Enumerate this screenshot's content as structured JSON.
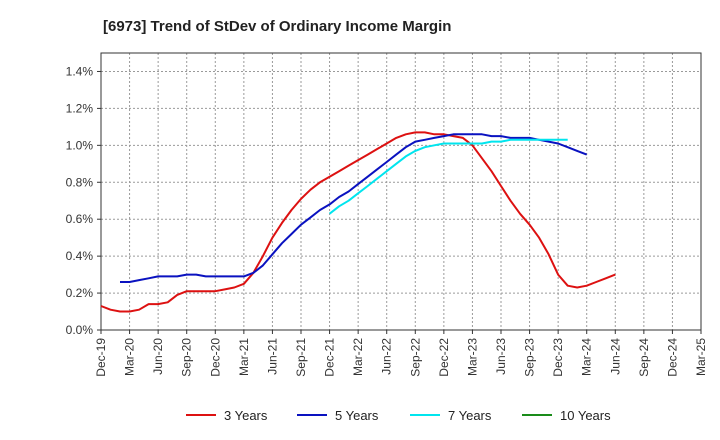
{
  "chart_data": {
    "type": "line",
    "title": "[6973]  Trend of StDev of Ordinary Income Margin",
    "xlabel": "",
    "ylabel": "",
    "ylim": [
      0,
      1.5
    ],
    "y_ticks": [
      "0.0%",
      "0.2%",
      "0.4%",
      "0.6%",
      "0.8%",
      "1.0%",
      "1.2%",
      "1.4%"
    ],
    "y_tick_values": [
      0,
      0.2,
      0.4,
      0.6,
      0.8,
      1.0,
      1.2,
      1.4
    ],
    "x_tick_labels": [
      "Dec-19",
      "Mar-20",
      "Jun-20",
      "Sep-20",
      "Dec-20",
      "Mar-21",
      "Jun-21",
      "Sep-21",
      "Dec-21",
      "Mar-22",
      "Jun-22",
      "Sep-22",
      "Dec-22",
      "Mar-23",
      "Jun-23",
      "Sep-23",
      "Dec-23",
      "Mar-24",
      "Jun-24",
      "Sep-24",
      "Dec-24",
      "Mar-25"
    ],
    "grid": true,
    "legend_position": "bottom",
    "series": [
      {
        "name": "3 Years",
        "color": "#dd1111",
        "start_index": 0,
        "values": [
          0.13,
          0.11,
          0.1,
          0.1,
          0.11,
          0.14,
          0.14,
          0.15,
          0.19,
          0.21,
          0.21,
          0.21,
          0.21,
          0.22,
          0.23,
          0.25,
          0.31,
          0.4,
          0.5,
          0.58,
          0.65,
          0.71,
          0.76,
          0.8,
          0.83,
          0.86,
          0.89,
          0.92,
          0.95,
          0.98,
          1.01,
          1.04,
          1.06,
          1.07,
          1.07,
          1.06,
          1.06,
          1.05,
          1.04,
          1.0,
          0.93,
          0.86,
          0.78,
          0.7,
          0.63,
          0.57,
          0.5,
          0.41,
          0.3,
          0.24,
          0.23,
          0.24,
          0.26,
          0.28,
          0.3
        ]
      },
      {
        "name": "5 Years",
        "color": "#0a12c0",
        "start_index": 2,
        "values": [
          0.26,
          0.26,
          0.27,
          0.28,
          0.29,
          0.29,
          0.29,
          0.3,
          0.3,
          0.29,
          0.29,
          0.29,
          0.29,
          0.29,
          0.31,
          0.35,
          0.41,
          0.47,
          0.52,
          0.57,
          0.61,
          0.65,
          0.68,
          0.72,
          0.75,
          0.79,
          0.83,
          0.87,
          0.91,
          0.95,
          0.99,
          1.02,
          1.03,
          1.04,
          1.05,
          1.06,
          1.06,
          1.06,
          1.06,
          1.05,
          1.05,
          1.04,
          1.04,
          1.04,
          1.03,
          1.02,
          1.01,
          0.99,
          0.97,
          0.95
        ]
      },
      {
        "name": "7 Years",
        "color": "#00e5ee",
        "start_index": 24,
        "values": [
          0.63,
          0.67,
          0.7,
          0.74,
          0.78,
          0.82,
          0.86,
          0.9,
          0.94,
          0.97,
          0.99,
          1.0,
          1.01,
          1.01,
          1.01,
          1.01,
          1.01,
          1.02,
          1.02,
          1.03,
          1.03,
          1.03,
          1.03,
          1.03,
          1.03,
          1.03
        ]
      },
      {
        "name": "10 Years",
        "color": "#1a8c1a",
        "start_index": 0,
        "values": []
      }
    ]
  }
}
